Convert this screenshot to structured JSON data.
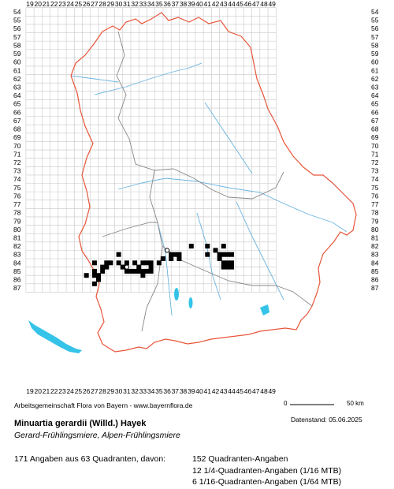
{
  "map": {
    "x_axis_labels": [
      "19",
      "20",
      "21",
      "22",
      "23",
      "24",
      "25",
      "26",
      "27",
      "28",
      "29",
      "30",
      "31",
      "32",
      "33",
      "34",
      "35",
      "36",
      "37",
      "38",
      "39",
      "40",
      "41",
      "42",
      "43",
      "44",
      "45",
      "46",
      "47",
      "48",
      "49"
    ],
    "y_axis_labels": [
      "54",
      "55",
      "56",
      "57",
      "58",
      "59",
      "60",
      "61",
      "62",
      "63",
      "64",
      "65",
      "66",
      "67",
      "68",
      "69",
      "70",
      "71",
      "72",
      "73",
      "74",
      "75",
      "76",
      "77",
      "78",
      "79",
      "80",
      "81",
      "82",
      "83",
      "84",
      "85",
      "86",
      "87"
    ],
    "border_color": "#e8553a",
    "region_border_color": "#888888",
    "river_color": "#6ab4e0",
    "lake_color": "#35c3e8",
    "grid_color": "#c8c8c8",
    "marker_color": "#000000",
    "occurrences_filled": [
      [
        26,
        85.5
      ],
      [
        27,
        84
      ],
      [
        27,
        85
      ],
      [
        27,
        85.5
      ],
      [
        27,
        86.5
      ],
      [
        27.5,
        85.5
      ],
      [
        27.5,
        86
      ],
      [
        28,
        84.5
      ],
      [
        28,
        85
      ],
      [
        28.5,
        84
      ],
      [
        28.5,
        84.5
      ],
      [
        29,
        84
      ],
      [
        30,
        83
      ],
      [
        30,
        84
      ],
      [
        30.5,
        84.5
      ],
      [
        31,
        84
      ],
      [
        31,
        85
      ],
      [
        31.5,
        85
      ],
      [
        32,
        84
      ],
      [
        32,
        85
      ],
      [
        32.5,
        84.5
      ],
      [
        32.5,
        85
      ],
      [
        33,
        84
      ],
      [
        33,
        85
      ],
      [
        33.5,
        85
      ],
      [
        33,
        85.5
      ],
      [
        33.5,
        84
      ],
      [
        34,
        84
      ],
      [
        34,
        84.5
      ],
      [
        34,
        85
      ],
      [
        35,
        84
      ],
      [
        35.5,
        83.5
      ],
      [
        36.5,
        83
      ],
      [
        37,
        83
      ],
      [
        37.5,
        83
      ],
      [
        36.5,
        83.5
      ],
      [
        37.5,
        83.5
      ],
      [
        39,
        82
      ],
      [
        41,
        82
      ],
      [
        41,
        83
      ],
      [
        42,
        82.5
      ],
      [
        42.5,
        83
      ],
      [
        42.5,
        83.5
      ],
      [
        43,
        82
      ],
      [
        43,
        83
      ],
      [
        43,
        84
      ],
      [
        43.5,
        83
      ],
      [
        43.5,
        84
      ],
      [
        43.5,
        84.5
      ],
      [
        44,
        83
      ],
      [
        44,
        84
      ],
      [
        44,
        84.5
      ],
      [
        43,
        84.5
      ]
    ],
    "occurrences_open": [
      [
        31,
        84.5
      ],
      [
        36,
        82.5
      ]
    ],
    "scale": {
      "start": "0",
      "end": "50 km"
    }
  },
  "footer": {
    "credit": "Arbeitsgemeinschaft Flora von Bayern - www.bayernflora.de",
    "datenstand": "Datenstand: 05.06.2025",
    "title": "Minuartia gerardii (Willd.) Hayek",
    "subtitle": "Gerard-Frühlingsmiere, Alpen-Frühlingsmiere",
    "summary": "171 Angaben aus 63 Quadranten, davon:",
    "breakdown": [
      "152 Quadranten-Angaben",
      "12 1/4-Quadranten-Angaben (1/16 MTB)",
      "6 1/16-Quadranten-Angaben (1/64 MTB)"
    ]
  }
}
